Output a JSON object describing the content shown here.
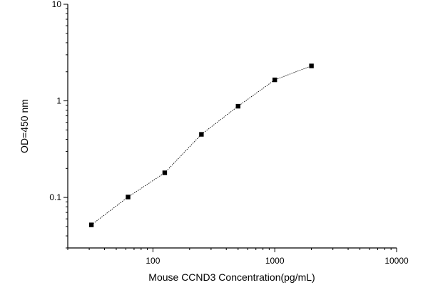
{
  "chart_data": {
    "type": "scatter",
    "title": "",
    "xlabel": "Mouse CCND3 Concentration(pg/mL)",
    "ylabel": "OD=450 nm",
    "xscale": "log",
    "yscale": "log",
    "xlim": [
      20,
      10000
    ],
    "ylim": [
      0.03,
      10
    ],
    "x_ticks": [
      {
        "value": 100,
        "label": "100"
      },
      {
        "value": 1000,
        "label": "1000"
      },
      {
        "value": 10000,
        "label": "10000"
      }
    ],
    "y_ticks": [
      {
        "value": 0.1,
        "label": "0.1"
      },
      {
        "value": 1,
        "label": "1"
      },
      {
        "value": 10,
        "label": "10"
      }
    ],
    "grid": false,
    "legend": "none",
    "marker": "square",
    "line_style": "dotted",
    "colors": {
      "marker": "#000000",
      "line": "#000000",
      "axis": "#000000"
    },
    "series": [
      {
        "x": [
          31.25,
          62.5,
          125,
          250,
          500,
          1000,
          2000
        ],
        "y": [
          0.052,
          0.101,
          0.18,
          0.45,
          0.88,
          1.65,
          2.3
        ]
      }
    ]
  }
}
